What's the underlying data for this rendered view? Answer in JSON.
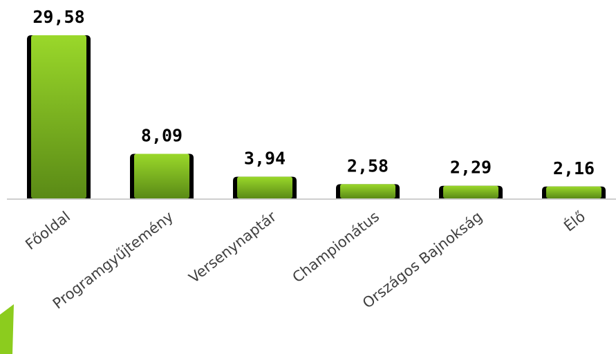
{
  "chart_data": {
    "type": "bar",
    "categories": [
      "Főoldal",
      "Programgyűjtemény",
      "Versenynaptár",
      "Championátus",
      "Országos Bajnokság",
      "Élő"
    ],
    "values": [
      29.58,
      8.09,
      3.94,
      2.58,
      2.29,
      2.16
    ],
    "value_labels": [
      "29,58",
      "8,09",
      "3,94",
      "2,58",
      "2,29",
      "2,16"
    ],
    "color": "#8ccc1e"
  }
}
